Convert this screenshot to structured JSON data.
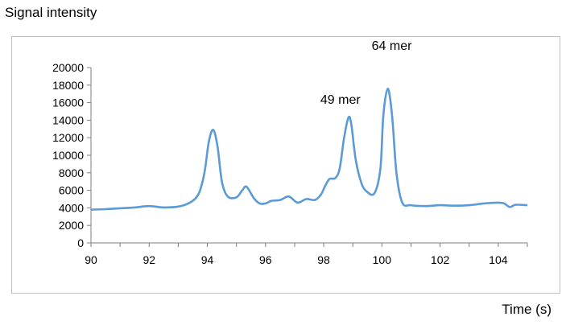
{
  "chart_data": {
    "type": "line",
    "ylabel": "Signal intensity",
    "xlabel": "Time (s)",
    "xlim": [
      90,
      105
    ],
    "ylim": [
      0,
      20000
    ],
    "x_ticks": [
      90,
      92,
      94,
      96,
      98,
      100,
      102,
      104
    ],
    "y_ticks": [
      0,
      2000,
      4000,
      6000,
      8000,
      10000,
      12000,
      14000,
      16000,
      18000,
      20000
    ],
    "grid": false,
    "legend": "none",
    "line_color": "#5b9bd5",
    "series": [
      {
        "x": [
          90,
          90.5,
          91,
          91.5,
          92,
          92.5,
          93,
          93.4,
          93.7,
          93.9,
          94.05,
          94.2,
          94.35,
          94.5,
          94.7,
          95,
          95.2,
          95.35,
          95.6,
          95.8,
          96,
          96.2,
          96.5,
          96.8,
          97.1,
          97.4,
          97.7,
          97.9,
          98.05,
          98.2,
          98.4,
          98.55,
          98.7,
          98.85,
          98.95,
          99.1,
          99.3,
          99.5,
          99.75,
          99.95,
          100.05,
          100.2,
          100.35,
          100.5,
          100.7,
          101,
          101.5,
          102,
          102.5,
          103,
          103.5,
          104,
          104.2,
          104.4,
          104.6,
          105
        ],
        "y": [
          3800,
          3850,
          3950,
          4050,
          4200,
          4050,
          4150,
          4600,
          5600,
          8000,
          11500,
          12900,
          11000,
          7000,
          5300,
          5200,
          6000,
          6400,
          5100,
          4500,
          4500,
          4800,
          4900,
          5300,
          4600,
          5000,
          4900,
          5500,
          6500,
          7300,
          7400,
          8500,
          12000,
          14300,
          13500,
          9500,
          6800,
          5800,
          5700,
          8500,
          14500,
          17600,
          14500,
          8000,
          4600,
          4300,
          4200,
          4300,
          4250,
          4300,
          4500,
          4600,
          4500,
          4100,
          4350,
          4300
        ]
      }
    ],
    "annotations": [
      {
        "text": "49 mer",
        "x": 98.85,
        "y": 14300
      },
      {
        "text": "64 mer",
        "x": 100.2,
        "y": 17600
      }
    ]
  }
}
